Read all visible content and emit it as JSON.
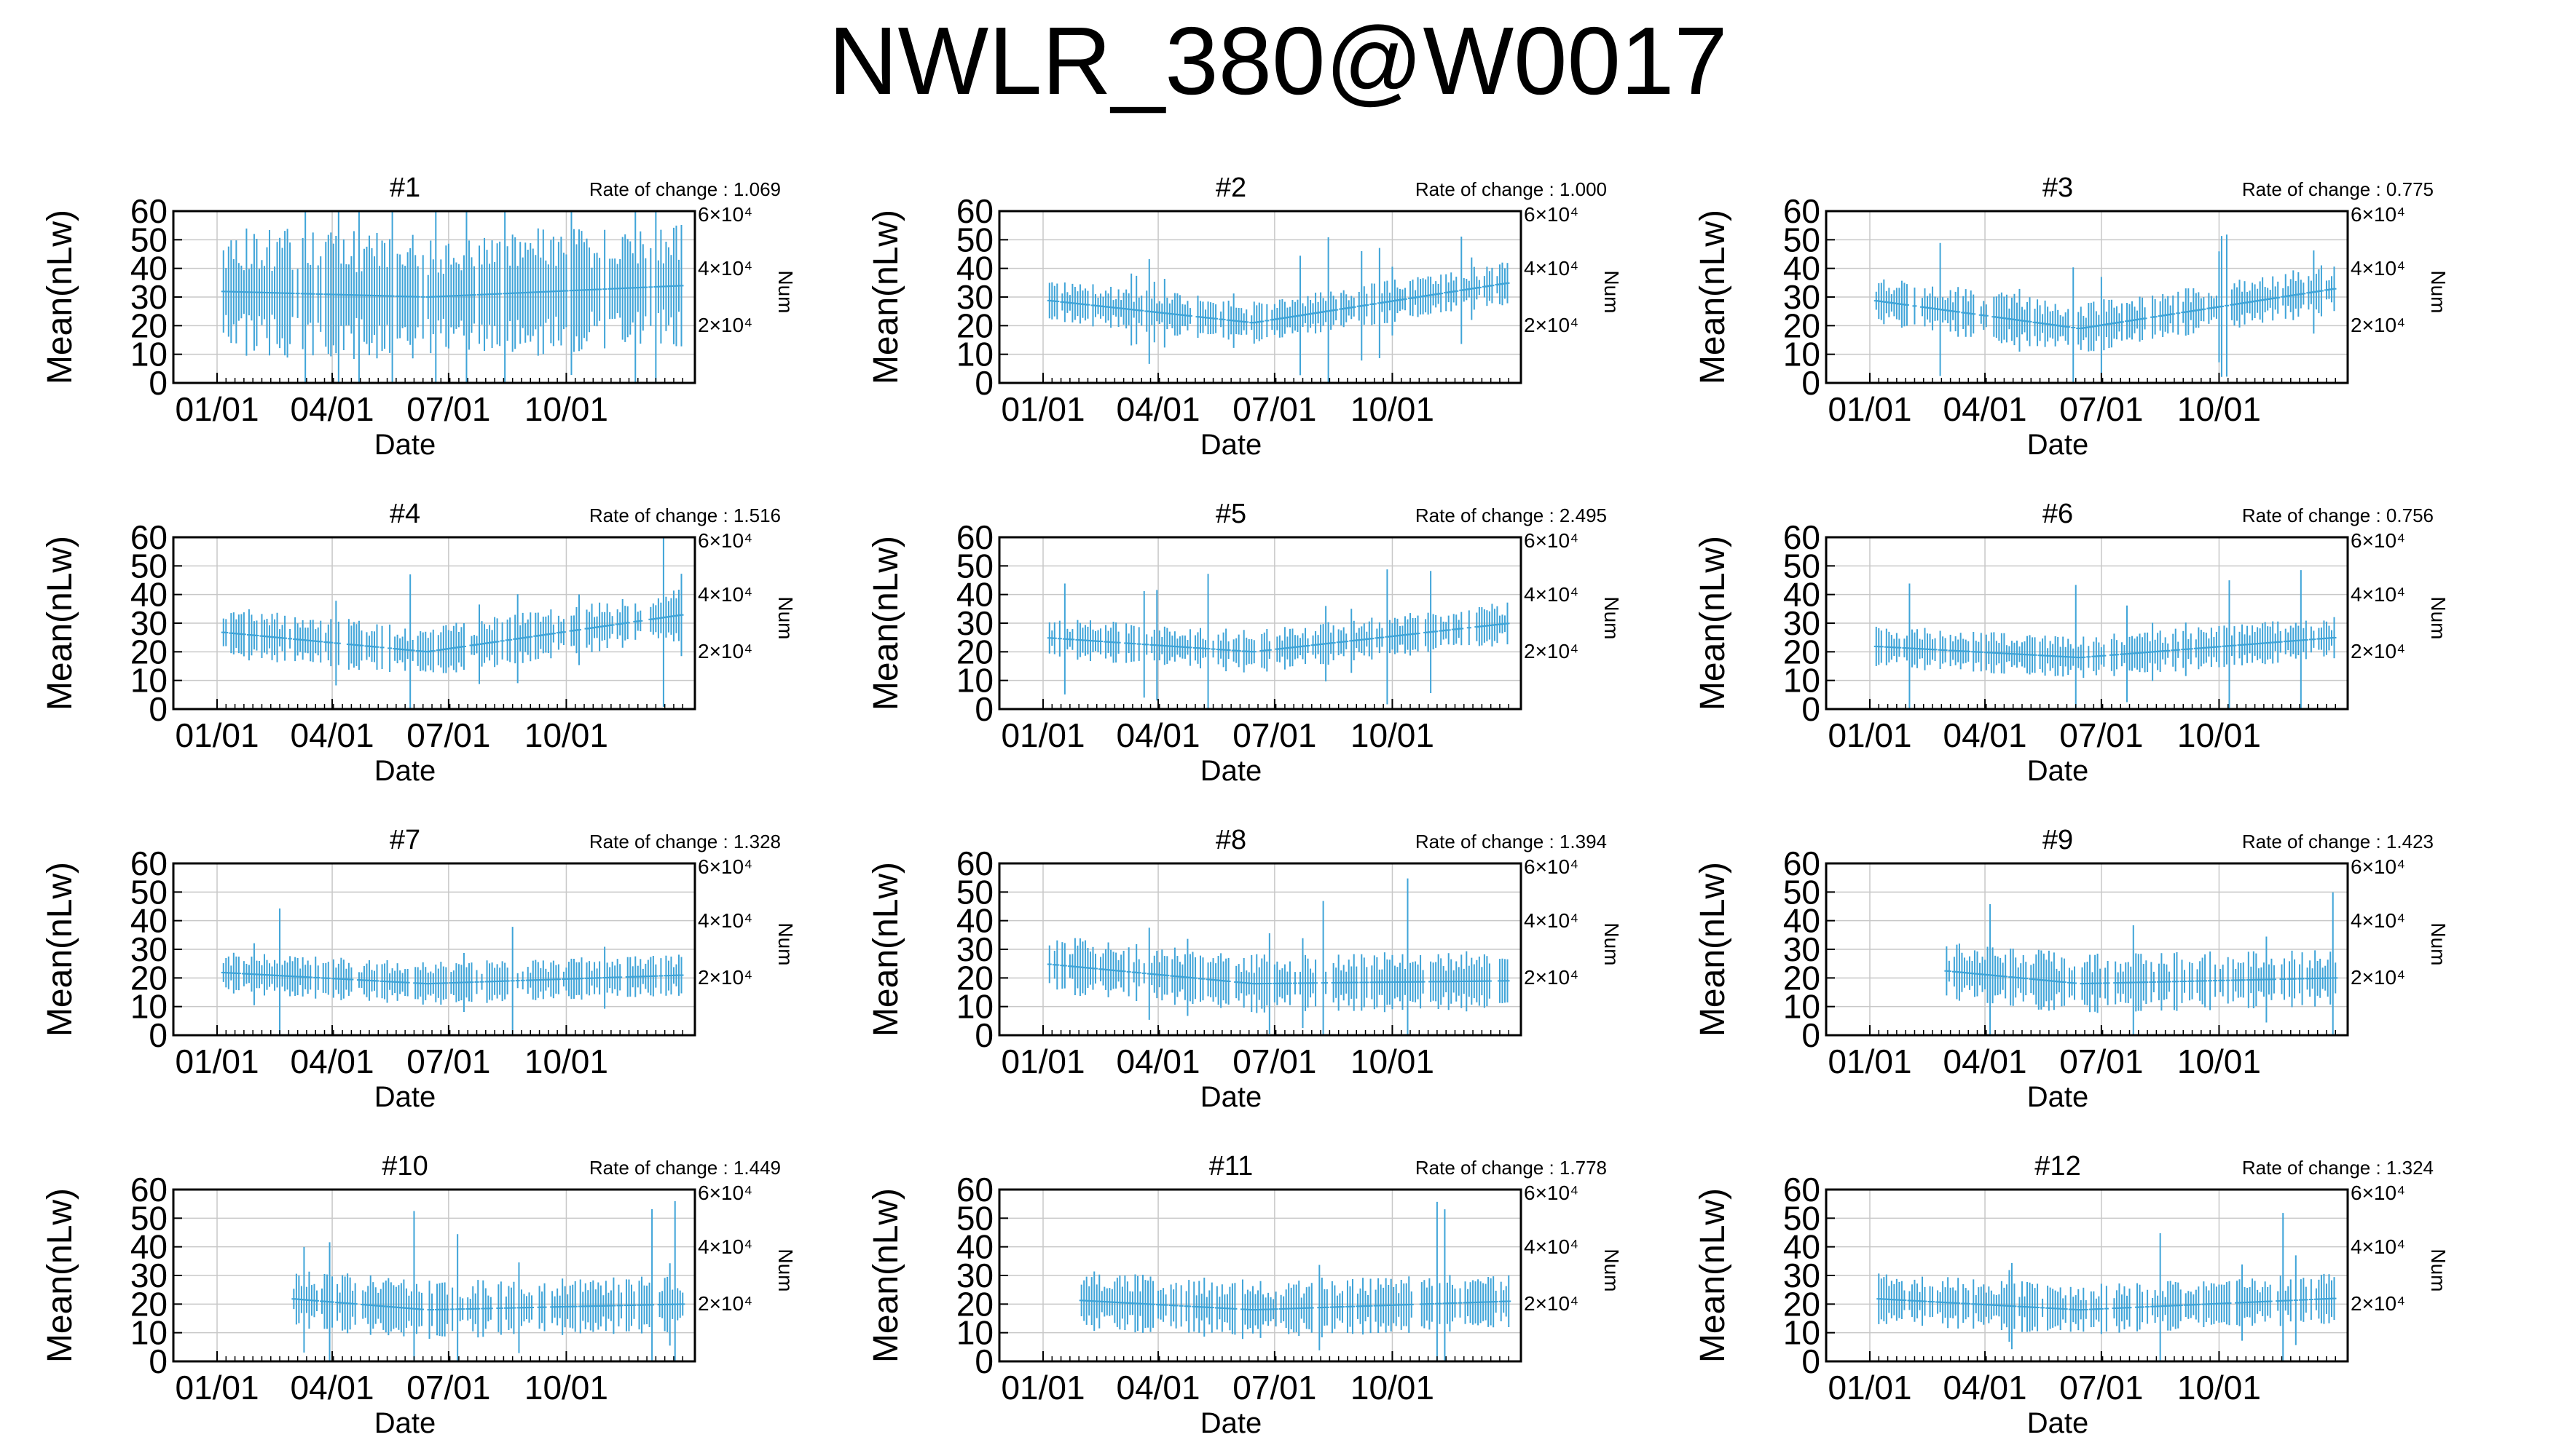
{
  "title": "NWLR_380@W0017",
  "series_color": "#3fa4d8",
  "chart_data": [
    {
      "type": "line",
      "panel": "#1",
      "rate_label": "Rate of change : 1.069",
      "xlabel": "Date",
      "ylabel": "Mean(nLw)",
      "y2label": "Num",
      "xticks": [
        "01/01",
        "04/01",
        "07/01",
        "10/01"
      ],
      "yticks": [
        0,
        10,
        20,
        30,
        40,
        50,
        60
      ],
      "ylim": [
        0,
        60
      ],
      "y2ticks": [
        "2×10⁴",
        "4×10⁴",
        "6×10⁴"
      ],
      "grid": true,
      "mean_start": 32,
      "mean_dip": 30,
      "mean_end": 34,
      "spread": 15,
      "data_start_day": 5
    },
    {
      "type": "line",
      "panel": "#2",
      "rate_label": "Rate of change : 1.000",
      "xlabel": "Date",
      "ylabel": "Mean(nLw)",
      "y2label": "Num",
      "xticks": [
        "01/01",
        "04/01",
        "07/01",
        "10/01"
      ],
      "yticks": [
        0,
        10,
        20,
        30,
        40,
        50,
        60
      ],
      "ylim": [
        0,
        60
      ],
      "y2ticks": [
        "2×10⁴",
        "4×10⁴",
        "6×10⁴"
      ],
      "grid": true,
      "mean_start": 29,
      "mean_dip": 21,
      "mean_end": 35,
      "spread": 5,
      "data_start_day": 5
    },
    {
      "type": "line",
      "panel": "#3",
      "rate_label": "Rate of change : 0.775",
      "xlabel": "Date",
      "ylabel": "Mean(nLw)",
      "y2label": "Num",
      "xticks": [
        "01/01",
        "04/01",
        "07/01",
        "10/01"
      ],
      "yticks": [
        0,
        10,
        20,
        30,
        40,
        50,
        60
      ],
      "ylim": [
        0,
        60
      ],
      "y2ticks": [
        "2×10⁴",
        "4×10⁴",
        "6×10⁴"
      ],
      "grid": true,
      "mean_start": 29,
      "mean_dip": 19,
      "mean_end": 33,
      "spread": 6,
      "data_start_day": 5
    },
    {
      "type": "line",
      "panel": "#4",
      "rate_label": "Rate of change : 1.516",
      "xlabel": "Date",
      "ylabel": "Mean(nLw)",
      "y2label": "Num",
      "xticks": [
        "01/01",
        "04/01",
        "07/01",
        "10/01"
      ],
      "yticks": [
        0,
        10,
        20,
        30,
        40,
        50,
        60
      ],
      "ylim": [
        0,
        60
      ],
      "y2ticks": [
        "2×10⁴",
        "4×10⁴",
        "6×10⁴"
      ],
      "grid": true,
      "mean_start": 27,
      "mean_dip": 20,
      "mean_end": 33,
      "spread": 6,
      "data_start_day": 5
    },
    {
      "type": "line",
      "panel": "#5",
      "rate_label": "Rate of change : 2.495",
      "xlabel": "Date",
      "ylabel": "Mean(nLw)",
      "y2label": "Num",
      "xticks": [
        "01/01",
        "04/01",
        "07/01",
        "10/01"
      ],
      "yticks": [
        0,
        10,
        20,
        30,
        40,
        50,
        60
      ],
      "ylim": [
        0,
        60
      ],
      "y2ticks": [
        "2×10⁴",
        "4×10⁴",
        "6×10⁴"
      ],
      "grid": true,
      "mean_start": 25,
      "mean_dip": 20,
      "mean_end": 30,
      "spread": 5,
      "data_start_day": 5
    },
    {
      "type": "line",
      "panel": "#6",
      "rate_label": "Rate of change : 0.756",
      "xlabel": "Date",
      "ylabel": "Mean(nLw)",
      "y2label": "Num",
      "xticks": [
        "01/01",
        "04/01",
        "07/01",
        "10/01"
      ],
      "yticks": [
        0,
        10,
        20,
        30,
        40,
        50,
        60
      ],
      "ylim": [
        0,
        60
      ],
      "y2ticks": [
        "2×10⁴",
        "4×10⁴",
        "6×10⁴"
      ],
      "grid": true,
      "mean_start": 22,
      "mean_dip": 18,
      "mean_end": 25,
      "spread": 5,
      "data_start_day": 5
    },
    {
      "type": "line",
      "panel": "#7",
      "rate_label": "Rate of change : 1.328",
      "xlabel": "Date",
      "ylabel": "Mean(nLw)",
      "y2label": "Num",
      "xticks": [
        "01/01",
        "04/01",
        "07/01",
        "10/01"
      ],
      "yticks": [
        0,
        10,
        20,
        30,
        40,
        50,
        60
      ],
      "ylim": [
        0,
        60
      ],
      "y2ticks": [
        "2×10⁴",
        "4×10⁴",
        "6×10⁴"
      ],
      "grid": true,
      "mean_start": 22,
      "mean_dip": 18,
      "mean_end": 21,
      "spread": 5,
      "data_start_day": 5
    },
    {
      "type": "line",
      "panel": "#8",
      "rate_label": "Rate of change : 1.394",
      "xlabel": "Date",
      "ylabel": "Mean(nLw)",
      "y2label": "Num",
      "xticks": [
        "01/01",
        "04/01",
        "07/01",
        "10/01"
      ],
      "yticks": [
        0,
        10,
        20,
        30,
        40,
        50,
        60
      ],
      "ylim": [
        0,
        60
      ],
      "y2ticks": [
        "2×10⁴",
        "4×10⁴",
        "6×10⁴"
      ],
      "grid": true,
      "mean_start": 25,
      "mean_dip": 18,
      "mean_end": 19,
      "spread": 7,
      "data_start_day": 5
    },
    {
      "type": "line",
      "panel": "#9",
      "rate_label": "Rate of change : 1.423",
      "xlabel": "Date",
      "ylabel": "Mean(nLw)",
      "y2label": "Num",
      "xticks": [
        "01/01",
        "04/01",
        "07/01",
        "10/01"
      ],
      "yticks": [
        0,
        10,
        20,
        30,
        40,
        50,
        60
      ],
      "ylim": [
        0,
        60
      ],
      "y2ticks": [
        "2×10⁴",
        "4×10⁴",
        "6×10⁴"
      ],
      "grid": true,
      "mean_start": 25,
      "mean_dip": 18,
      "mean_end": 20,
      "spread": 7,
      "data_start_day": 60
    },
    {
      "type": "line",
      "panel": "#10",
      "rate_label": "Rate of change : 1.449",
      "xlabel": "Date",
      "ylabel": "Mean(nLw)",
      "y2label": "Num",
      "xticks": [
        "01/01",
        "04/01",
        "07/01",
        "10/01"
      ],
      "yticks": [
        0,
        10,
        20,
        30,
        40,
        50,
        60
      ],
      "ylim": [
        0,
        60
      ],
      "y2ticks": [
        "2×10⁴",
        "4×10⁴",
        "6×10⁴"
      ],
      "grid": true,
      "mean_start": 24,
      "mean_dip": 18,
      "mean_end": 20,
      "spread": 7,
      "data_start_day": 60
    },
    {
      "type": "line",
      "panel": "#11",
      "rate_label": "Rate of change : 1.778",
      "xlabel": "Date",
      "ylabel": "Mean(nLw)",
      "y2label": "Num",
      "xticks": [
        "01/01",
        "04/01",
        "07/01",
        "10/01"
      ],
      "yticks": [
        0,
        10,
        20,
        30,
        40,
        50,
        60
      ],
      "ylim": [
        0,
        60
      ],
      "y2ticks": [
        "2×10⁴",
        "4×10⁴",
        "6×10⁴"
      ],
      "grid": true,
      "mean_start": 22,
      "mean_dip": 18,
      "mean_end": 21,
      "spread": 7,
      "data_start_day": 30
    },
    {
      "type": "line",
      "panel": "#12",
      "rate_label": "Rate of change : 1.324",
      "xlabel": "Date",
      "ylabel": "Mean(nLw)",
      "y2label": "Num",
      "xticks": [
        "01/01",
        "04/01",
        "07/01",
        "10/01"
      ],
      "yticks": [
        0,
        10,
        20,
        30,
        40,
        50,
        60
      ],
      "ylim": [
        0,
        60
      ],
      "y2ticks": [
        "2×10⁴",
        "4×10⁴",
        "6×10⁴"
      ],
      "grid": true,
      "mean_start": 22,
      "mean_dip": 18,
      "mean_end": 22,
      "spread": 6,
      "data_start_day": 5
    }
  ]
}
